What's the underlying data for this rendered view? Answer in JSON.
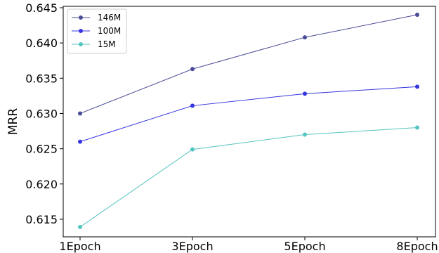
{
  "chart_data": {
    "type": "line",
    "title": "",
    "xlabel": "",
    "ylabel": "MRR",
    "categories": [
      "1Epoch",
      "3Epoch",
      "5Epoch",
      "8Epoch"
    ],
    "ylim": [
      0.6125,
      0.6452
    ],
    "yticks": [
      0.615,
      0.62,
      0.625,
      0.63,
      0.635,
      0.64,
      0.645
    ],
    "ytick_labels": [
      "0.615",
      "0.620",
      "0.625",
      "0.630",
      "0.635",
      "0.640",
      "0.645"
    ],
    "grid": false,
    "legend": "top-left",
    "series": [
      {
        "name": "146M",
        "values": [
          0.63,
          0.6363,
          0.6408,
          0.644
        ],
        "color": "#4c4c99"
      },
      {
        "name": "100M",
        "values": [
          0.626,
          0.6311,
          0.6328,
          0.6338
        ],
        "color": "#3636e0"
      },
      {
        "name": "15M",
        "values": [
          0.6139,
          0.6249,
          0.627,
          0.628
        ],
        "color": "#55c5c0"
      }
    ]
  }
}
